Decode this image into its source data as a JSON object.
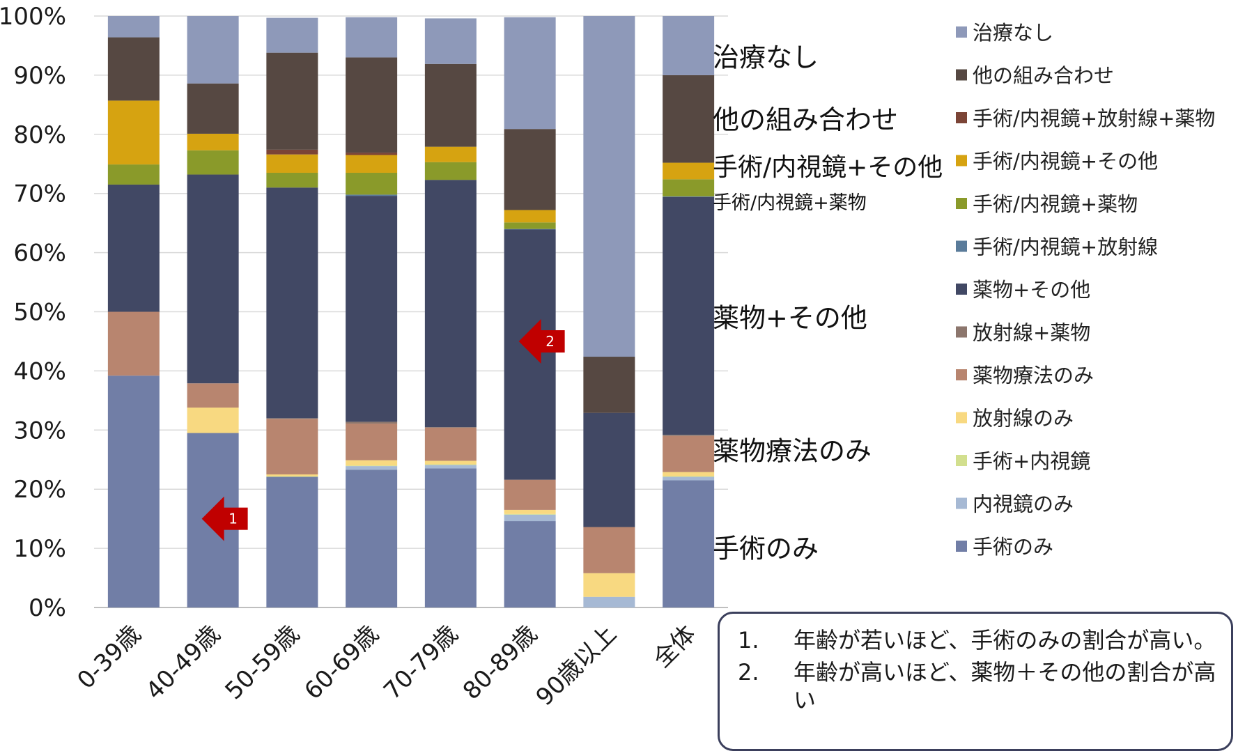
{
  "chart_data": {
    "type": "bar",
    "stacked": true,
    "percent": true,
    "categories": [
      "0-39歳",
      "40-49歳",
      "50-59歳",
      "60-69歳",
      "70-79歳",
      "80-89歳",
      "90歳以上",
      "全体"
    ],
    "ylim": [
      0,
      100
    ],
    "yticks": [
      "0%",
      "10%",
      "20%",
      "30%",
      "40%",
      "50%",
      "60%",
      "70%",
      "80%",
      "90%",
      "100%"
    ],
    "grid": true,
    "legend_position": "right",
    "series": [
      {
        "name": "手術のみ",
        "color": "#717ea6",
        "values": [
          39.2,
          29.5,
          22.1,
          23.3,
          23.5,
          14.6,
          0.0,
          21.5
        ]
      },
      {
        "name": "内視鏡のみ",
        "color": "#a6b9d4",
        "values": [
          0.0,
          0.0,
          0.0,
          0.6,
          0.6,
          1.1,
          1.8,
          0.6
        ]
      },
      {
        "name": "手術+内視鏡",
        "color": "#d2df8e",
        "values": [
          0.0,
          0.0,
          0.1,
          0.1,
          0.1,
          0.1,
          0.0,
          0.1
        ]
      },
      {
        "name": "放射線のみ",
        "color": "#f8d981",
        "values": [
          0.0,
          4.3,
          0.3,
          0.9,
          0.6,
          0.7,
          4.0,
          0.7
        ]
      },
      {
        "name": "薬物療法のみ",
        "color": "#b8856f",
        "values": [
          10.8,
          4.1,
          9.4,
          6.2,
          5.6,
          5.1,
          7.8,
          6.1
        ]
      },
      {
        "name": "放射線+薬物",
        "color": "#8c766d",
        "values": [
          0.0,
          0.0,
          0.1,
          0.3,
          0.1,
          0.0,
          0.0,
          0.2
        ]
      },
      {
        "name": "薬物+その他",
        "color": "#414864",
        "values": [
          21.5,
          35.3,
          39.0,
          38.2,
          41.8,
          42.3,
          19.3,
          40.2
        ]
      },
      {
        "name": "手術/内視鏡+放射線",
        "color": "#5a7b9a",
        "values": [
          0.0,
          0.0,
          0.0,
          0.2,
          0.0,
          0.1,
          0.0,
          0.1
        ]
      },
      {
        "name": "手術/内視鏡+薬物",
        "color": "#8a9a2a",
        "values": [
          3.4,
          4.1,
          2.5,
          3.7,
          3.0,
          1.1,
          0.0,
          2.9
        ]
      },
      {
        "name": "手術/内視鏡+その他",
        "color": "#d6a311",
        "values": [
          10.8,
          2.8,
          3.1,
          3.0,
          2.6,
          2.1,
          0.0,
          2.8
        ]
      },
      {
        "name": "手術/内視鏡+放射線+薬物",
        "color": "#7b4436",
        "values": [
          0.0,
          0.0,
          0.8,
          0.4,
          0.0,
          0.0,
          0.0,
          0.0
        ]
      },
      {
        "name": "他の組み合わせ",
        "color": "#564842",
        "values": [
          10.7,
          8.5,
          16.4,
          16.1,
          14.0,
          13.7,
          9.5,
          14.8
        ]
      },
      {
        "name": "治療なし",
        "color": "#8e99b9",
        "values": [
          3.6,
          11.4,
          5.9,
          6.8,
          7.7,
          18.9,
          57.6,
          10.0
        ]
      }
    ],
    "inline_labels": [
      {
        "text": "治療なし",
        "y": 93,
        "size": 38
      },
      {
        "text": "他の組み合わせ",
        "y": 82.5,
        "size": 38
      },
      {
        "text": "手術/内視鏡+その他",
        "y": 74.5,
        "size": 36
      },
      {
        "text": "手術/内視鏡+薬物",
        "y": 68.5,
        "size": 27
      },
      {
        "text": "薬物+その他",
        "y": 49,
        "size": 38
      },
      {
        "text": "薬物療法のみ",
        "y": 26.5,
        "size": 38
      },
      {
        "text": "手術のみ",
        "y": 10,
        "size": 38
      }
    ],
    "annotations": [
      {
        "text": "1",
        "category_index": 1,
        "y": 15,
        "color": "#c00000"
      },
      {
        "text": "2",
        "category_index": 5,
        "y": 45,
        "color": "#c00000"
      }
    ]
  },
  "notes": [
    {
      "num": "1.",
      "text": "年齢が若いほど、手術のみの割合が高い。"
    },
    {
      "num": "2.",
      "text": "年齢が高いほど、薬物＋その他の割合が高い"
    }
  ]
}
